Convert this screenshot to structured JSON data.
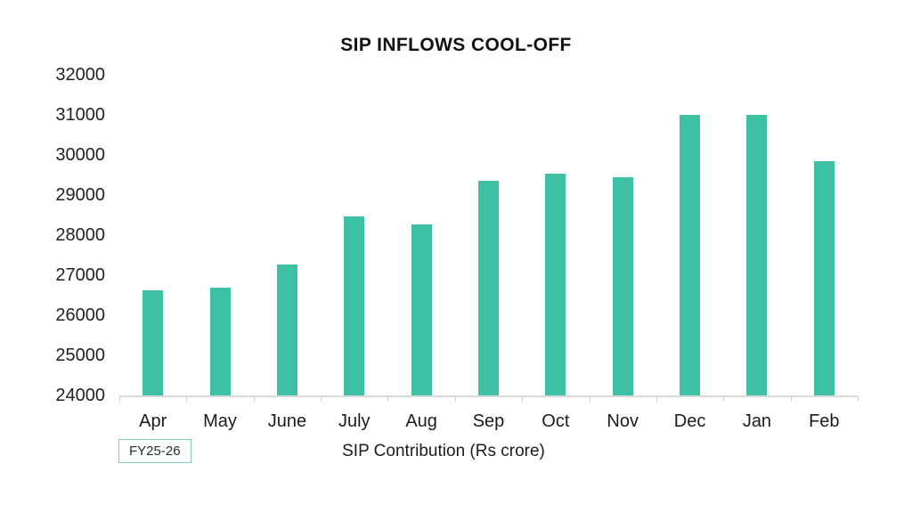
{
  "title": "SIP INFLOWS COOL-OFF",
  "badge": {
    "label": "FY25-26"
  },
  "axis": {
    "xlabel": "SIP Contribution (Rs crore)"
  },
  "colors": {
    "bar": "#3dc0a4",
    "axis_line": "#d9d9d9",
    "tick": "#d2d2d2",
    "badge_border": "#7ecfc0",
    "text": "#1c1c1c"
  },
  "chart_data": {
    "type": "bar",
    "title": "SIP INFLOWS COOL-OFF",
    "categories": [
      "Apr",
      "May",
      "June",
      "July",
      "Aug",
      "Sep",
      "Oct",
      "Nov",
      "Dec",
      "Jan",
      "Feb"
    ],
    "values": [
      26630,
      26690,
      27270,
      28460,
      28270,
      29360,
      29530,
      29440,
      30990,
      30990,
      29840
    ],
    "xlabel": "SIP Contribution (Rs crore)",
    "ylabel": "",
    "ylim": [
      24000,
      32000
    ],
    "y_ticks": [
      24000,
      25000,
      26000,
      27000,
      28000,
      29000,
      30000,
      31000,
      32000
    ],
    "period_note": "FY25-26",
    "bar_color": "#3dc0a4",
    "grid": false,
    "legend_position": "none"
  }
}
